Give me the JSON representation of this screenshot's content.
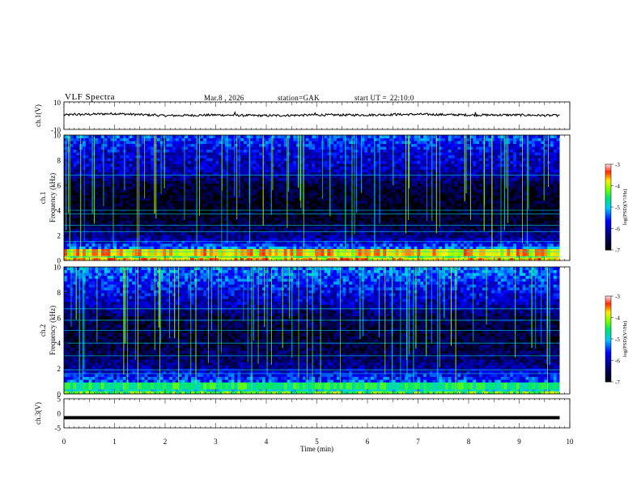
{
  "header": {
    "title": "VLF Spectra",
    "date": "Mar.8 , 2026",
    "station": "station=GAK",
    "start_label": "start UT =",
    "start_time": "22:10:0"
  },
  "colors": {
    "background": "#ffffff",
    "spectrogram_floor": "#000000",
    "trace": "#000000"
  },
  "chart_data": [
    {
      "type": "line",
      "name": "ch1-voltage",
      "ylabel": "ch.1(V)",
      "ylim": [
        -10,
        10
      ],
      "yticks": [
        "10",
        "-10"
      ],
      "xlim": [
        0,
        10
      ],
      "x": [
        0,
        1,
        2,
        3,
        4,
        5,
        6,
        7,
        8,
        9,
        9.8
      ],
      "y": [
        0.5,
        1.5,
        0.0,
        0.5,
        0.0,
        0.5,
        0.5,
        1.0,
        0.5,
        0.5,
        0.0
      ]
    },
    {
      "type": "heatmap",
      "name": "ch1-spectrogram",
      "ylabel_top": "ch.1",
      "ylabel": "Frequency (kHz)",
      "ylim": [
        0,
        10
      ],
      "yticks": [
        "0",
        "2",
        "4",
        "6",
        "8",
        "10"
      ],
      "xlim": [
        0,
        9.8
      ],
      "colorbar": {
        "label": "log(PSD)(V²/Hz)",
        "ticks": [
          "-3",
          "-4",
          "-5",
          "-6",
          "-7"
        ],
        "range": [
          -7,
          -3
        ]
      },
      "freq_profile_khz": [
        0,
        0.5,
        1.0,
        1.5,
        2.0,
        3.0,
        4.0,
        6.0,
        7.0,
        8.5,
        10
      ],
      "log_psd_profile": [
        -3.5,
        -4.3,
        -5.2,
        -5.8,
        -6.2,
        -6.7,
        -6.8,
        -6.6,
        -6.0,
        -5.8,
        -5.4
      ]
    },
    {
      "type": "heatmap",
      "name": "ch2-spectrogram",
      "ylabel_top": "ch.2",
      "ylabel": "Frequency (kHz)",
      "ylim": [
        0,
        10
      ],
      "yticks": [
        "0",
        "2",
        "4",
        "6",
        "8",
        "10"
      ],
      "xlim": [
        0,
        9.8
      ],
      "colorbar": {
        "label": "log(PSD)(V²/Hz)",
        "ticks": [
          "-3",
          "-4",
          "-5",
          "-6",
          "-7"
        ],
        "range": [
          -7,
          -3
        ]
      },
      "freq_profile_khz": [
        0,
        0.5,
        1.0,
        1.5,
        2.0,
        3.0,
        4.0,
        6.0,
        7.0,
        8.5,
        10
      ],
      "log_psd_profile": [
        -4.0,
        -5.2,
        -5.4,
        -5.6,
        -6.1,
        -6.4,
        -6.6,
        -6.5,
        -6.0,
        -5.6,
        -5.2
      ]
    },
    {
      "type": "line",
      "name": "ch3-voltage",
      "ylabel": "ch.3(V)",
      "ylim": [
        -5,
        5
      ],
      "yticks": [
        "5",
        "0",
        "-5"
      ],
      "xlim": [
        0,
        10
      ],
      "x": [
        0,
        9.8
      ],
      "y": [
        -1.5,
        -1.5
      ]
    },
    {
      "type": "axis",
      "name": "time-axis",
      "xlabel": "Time (min)",
      "xlim": [
        0,
        10
      ],
      "xticks": [
        "0",
        "1",
        "2",
        "3",
        "4",
        "5",
        "6",
        "7",
        "8",
        "9",
        "10"
      ]
    }
  ]
}
